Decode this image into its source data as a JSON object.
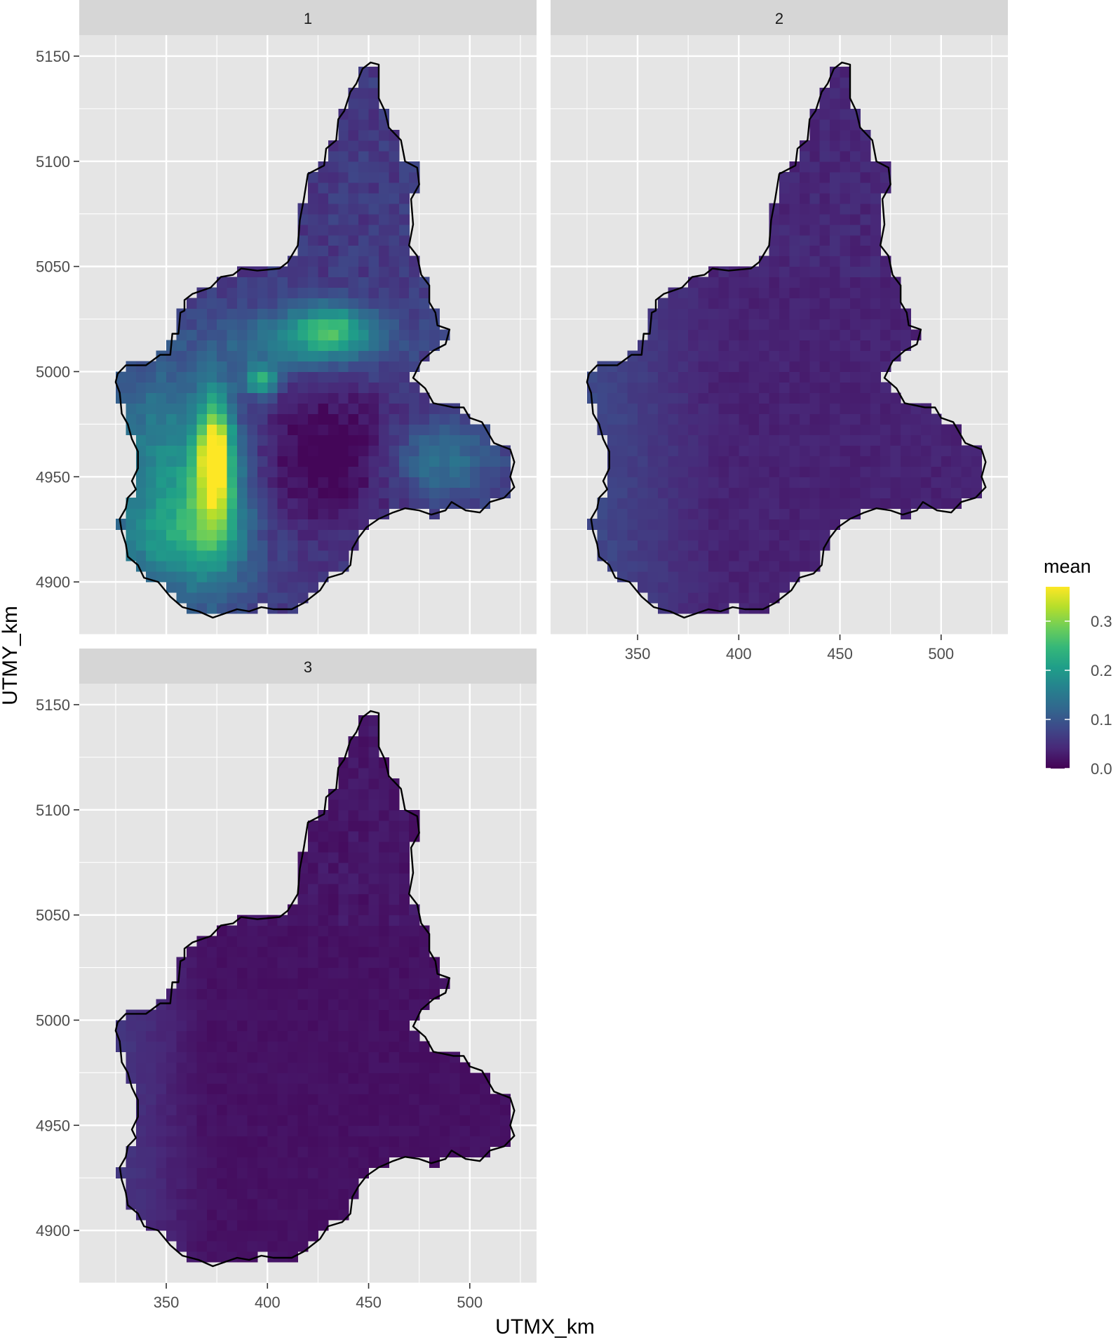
{
  "figure": {
    "x_axis_title": "UTMX_km",
    "y_axis_title": "UTMY_km",
    "x_ticks": [
      350,
      400,
      450,
      500
    ],
    "y_ticks": [
      4900,
      4950,
      5000,
      5050,
      5100,
      5150
    ],
    "xlim": [
      307,
      533
    ],
    "ylim": [
      4875,
      5160
    ],
    "panel_background": "#e5e5e5",
    "strip_background": "#d6d6d6",
    "grid_color": "#ffffff",
    "boundary_color": "#000000"
  },
  "panels": [
    {
      "strip": "1",
      "pattern": "high"
    },
    {
      "strip": "2",
      "pattern": "medium"
    },
    {
      "strip": "3",
      "pattern": "low"
    }
  ],
  "legend": {
    "title": "mean",
    "ticks": [
      "0.3",
      "0.2",
      "0.1",
      "0.0"
    ],
    "tick_values": [
      0.3,
      0.2,
      0.1,
      0.0
    ],
    "range": [
      0,
      0.37
    ],
    "colors": [
      "#440154",
      "#482878",
      "#3e4989",
      "#31688e",
      "#26828e",
      "#1f9e89",
      "#35b779",
      "#6ece58",
      "#b5de2b",
      "#fde725"
    ]
  },
  "boundary_outline": [
    [
      326,
      4999
    ],
    [
      330,
      5003
    ],
    [
      340,
      5003
    ],
    [
      347,
      5008
    ],
    [
      352,
      5008
    ],
    [
      353,
      5018
    ],
    [
      356,
      5018
    ],
    [
      357,
      5028
    ],
    [
      359,
      5029
    ],
    [
      359,
      5034
    ],
    [
      363,
      5037
    ],
    [
      372,
      5040
    ],
    [
      377,
      5045
    ],
    [
      383,
      5046
    ],
    [
      387,
      5049
    ],
    [
      395,
      5048
    ],
    [
      406,
      5049
    ],
    [
      410,
      5052
    ],
    [
      415,
      5060
    ],
    [
      416,
      5072
    ],
    [
      418,
      5082
    ],
    [
      420,
      5094
    ],
    [
      428,
      5098
    ],
    [
      429,
      5106
    ],
    [
      434,
      5110
    ],
    [
      435,
      5120
    ],
    [
      438,
      5124
    ],
    [
      441,
      5133
    ],
    [
      444,
      5137
    ],
    [
      447,
      5144
    ],
    [
      451,
      5147
    ],
    [
      455,
      5146
    ],
    [
      455,
      5130
    ],
    [
      458,
      5124
    ],
    [
      460,
      5116
    ],
    [
      466,
      5110
    ],
    [
      468,
      5100
    ],
    [
      474,
      5097
    ],
    [
      475,
      5089
    ],
    [
      471,
      5082
    ],
    [
      472,
      5070
    ],
    [
      470,
      5060
    ],
    [
      474,
      5055
    ],
    [
      476,
      5046
    ],
    [
      480,
      5041
    ],
    [
      480,
      5033
    ],
    [
      483,
      5028
    ],
    [
      484,
      5022
    ],
    [
      490,
      5020
    ],
    [
      488,
      5013
    ],
    [
      482,
      5010
    ],
    [
      476,
      5005
    ],
    [
      472,
      4997
    ],
    [
      478,
      4992
    ],
    [
      482,
      4985
    ],
    [
      492,
      4983
    ],
    [
      497,
      4983
    ],
    [
      500,
      4978
    ],
    [
      506,
      4976
    ],
    [
      512,
      4966
    ],
    [
      520,
      4963
    ],
    [
      522,
      4957
    ],
    [
      520,
      4950
    ],
    [
      522,
      4945
    ],
    [
      517,
      4940
    ],
    [
      510,
      4938
    ],
    [
      505,
      4933
    ],
    [
      498,
      4934
    ],
    [
      491,
      4938
    ],
    [
      488,
      4934
    ],
    [
      481,
      4932
    ],
    [
      475,
      4934
    ],
    [
      468,
      4935
    ],
    [
      462,
      4933
    ],
    [
      455,
      4930
    ],
    [
      449,
      4926
    ],
    [
      445,
      4921
    ],
    [
      442,
      4916
    ],
    [
      441,
      4908
    ],
    [
      437,
      4904
    ],
    [
      430,
      4902
    ],
    [
      426,
      4896
    ],
    [
      418,
      4890
    ],
    [
      412,
      4887
    ],
    [
      403,
      4887
    ],
    [
      397,
      4888
    ],
    [
      391,
      4886
    ],
    [
      385,
      4887
    ],
    [
      379,
      4885
    ],
    [
      373,
      4883
    ],
    [
      366,
      4886
    ],
    [
      358,
      4888
    ],
    [
      352,
      4893
    ],
    [
      346,
      4900
    ],
    [
      339,
      4902
    ],
    [
      336,
      4908
    ],
    [
      331,
      4912
    ],
    [
      330,
      4918
    ],
    [
      328,
      4924
    ],
    [
      327,
      4930
    ],
    [
      330,
      4935
    ],
    [
      331,
      4940
    ],
    [
      335,
      4944
    ],
    [
      333,
      4948
    ],
    [
      336,
      4954
    ],
    [
      336,
      4962
    ],
    [
      333,
      4968
    ],
    [
      331,
      4975
    ],
    [
      328,
      4980
    ],
    [
      327,
      4990
    ],
    [
      325,
      4995
    ]
  ]
}
